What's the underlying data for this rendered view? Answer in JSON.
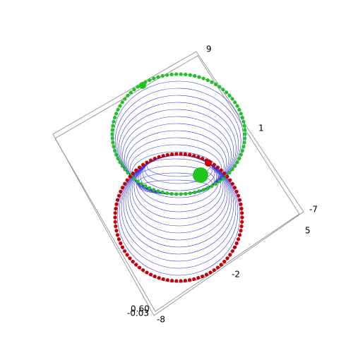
{
  "axes": {
    "labels": [
      "9",
      "1",
      "-7",
      "5",
      "-2",
      "-8",
      "0.60",
      "-0.03"
    ]
  }
}
